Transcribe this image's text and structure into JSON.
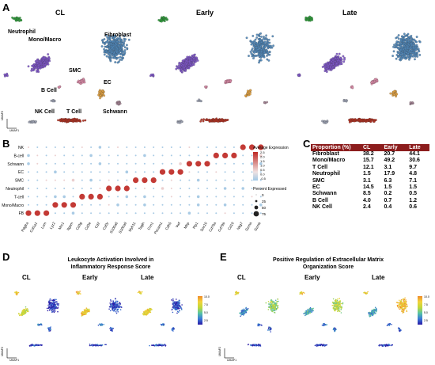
{
  "panels": {
    "a": "A",
    "b": "B",
    "c": "C",
    "d": "D",
    "e": "E"
  },
  "umap_titles": [
    "CL",
    "Early",
    "Late"
  ],
  "cell_labels": {
    "neutrophil": "Neutrophil",
    "mono_macro": "Mono/Macro",
    "fibroblast": "Fibroblast",
    "smc": "SMC",
    "ec": "EC",
    "b_cell": "B Cell",
    "nk_cell": "NK Cell",
    "t_cell": "T Cell",
    "schwann": "Schwann"
  },
  "axes": {
    "umap1": "UMAP1",
    "umap2": "UMAP2"
  },
  "colors": {
    "neutrophil": "#2e9a3a",
    "mono_macro": "#7d55c7",
    "fibroblast": "#4f86b8",
    "smc": "#d98aa6",
    "ec": "#e0a040",
    "schwann": "#a08090",
    "b_cell": "#9aa0b0",
    "nk_t": "#b03020",
    "header_red": "#8c1d1d"
  },
  "dotplot": {
    "rows": [
      "NK",
      "B-cell",
      "Schwann",
      "EC",
      "SMC",
      "Neutrophil",
      "T-cell",
      "Mono/Macro",
      "FB"
    ],
    "genes": [
      "Pdgfra",
      "Col1a1",
      "Lum",
      "Lyz2",
      "Mrc1",
      "Itgam",
      "Cd3g",
      "Cd3e",
      "Cd2",
      "Csf3r",
      "S100a8",
      "S100a9",
      "Myh11",
      "Tagln",
      "Cnn1",
      "Pecam1",
      "Cdh5",
      "Vwf",
      "Mbp",
      "Plp1",
      "Sox10",
      "Cd79a",
      "Cd79b",
      "Cd19",
      "Nkg7",
      "Gzma",
      "Gzmb"
    ],
    "legend_expr_title": "Average Expression",
    "legend_expr_ticks": [
      "2.5",
      "2.0",
      "1.5",
      "1.0",
      "0.5",
      "0.0",
      "-0.5"
    ],
    "legend_pct_title": "Percent Expressed",
    "legend_pct_ticks": [
      "0",
      "25",
      "50",
      "75"
    ]
  },
  "proportion_table": {
    "headers": [
      "Proportion (%)",
      "CL",
      "Early",
      "Late"
    ],
    "rows": [
      [
        "Fibroblast",
        "38.2",
        "20.7",
        "44.1"
      ],
      [
        "Mono/Macro",
        "15.7",
        "49.2",
        "30.6"
      ],
      [
        "T Cell",
        "12.1",
        "3.1",
        "9.7"
      ],
      [
        "Neutrophil",
        "1.5",
        "17.9",
        "4.8"
      ],
      [
        "SMC",
        "3.1",
        "6.3",
        "7.1"
      ],
      [
        "EC",
        "14.5",
        "1.5",
        "1.5"
      ],
      [
        "Schwann",
        "8.5",
        "0.2",
        "0.5"
      ],
      [
        "B Cell",
        "4.0",
        "0.7",
        "1.2"
      ],
      [
        "NK Cell",
        "2.4",
        "0.4",
        "0.6"
      ]
    ]
  },
  "panel_d": {
    "title_line1": "Leukocyte Activation Involved in",
    "title_line2": "Inflammatory Response Score",
    "subs": [
      "CL",
      "Early",
      "Late"
    ],
    "cbar_ticks": [
      "10.0",
      "7.5",
      "5.0",
      "2.5"
    ]
  },
  "panel_e": {
    "title_line1": "Positive Regulation of Extracellular Matrix",
    "title_line2": "Organization Score",
    "subs": [
      "CL",
      "Early",
      "Late"
    ],
    "cbar_ticks": [
      "10.0",
      "7.5",
      "5.0",
      "2.5"
    ]
  }
}
